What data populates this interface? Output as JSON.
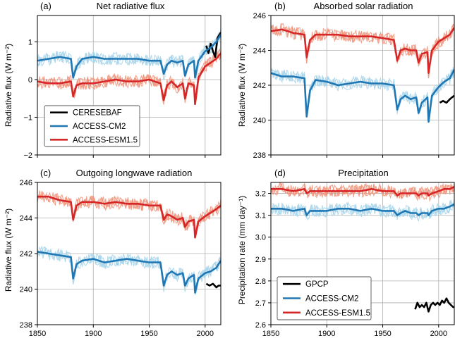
{
  "colors": {
    "obs": "#000000",
    "cm2": "#1f77b4",
    "cm2_light": "#a6d3ea",
    "esm": "#d62728",
    "esm_light": "#f0937a",
    "grid": "#b0b0b0"
  },
  "chart_data": [
    {
      "type": "line",
      "panel": "(a)",
      "title": "Net radiative flux",
      "ylabel": "Radiative flux (W m⁻²)",
      "xlim": [
        1850,
        2014
      ],
      "ylim": [
        -2,
        1.7
      ],
      "yticks": [
        -2,
        -1,
        0,
        1
      ],
      "ytick_labels": [
        "−2",
        "−1",
        "0",
        "1"
      ],
      "xticks": [
        1850,
        1900,
        1950,
        2000
      ],
      "xtick_labels": [],
      "grid": true,
      "legend": {
        "placement": "lower-left",
        "entries": [
          "CERESEBAF",
          "ACCESS-CM2",
          "ACCESS-ESM1.5"
        ]
      },
      "series": [
        {
          "name": "CERESEBAF",
          "color": "obs",
          "x": [
            2001,
            2003,
            2005,
            2007,
            2009,
            2011,
            2013,
            2014
          ],
          "y": [
            0.9,
            0.7,
            0.95,
            0.75,
            0.6,
            1.1,
            1.2,
            1.25
          ]
        },
        {
          "name": "ACCESS-CM2",
          "color": "cm2",
          "x": [
            1850,
            1860,
            1870,
            1880,
            1882,
            1885,
            1890,
            1900,
            1910,
            1920,
            1930,
            1940,
            1950,
            1960,
            1963,
            1966,
            1970,
            1975,
            1980,
            1982,
            1985,
            1990,
            1991,
            1994,
            2000,
            2005,
            2010,
            2014
          ],
          "y": [
            0.5,
            0.55,
            0.6,
            0.55,
            0.05,
            0.35,
            0.55,
            0.6,
            0.55,
            0.55,
            0.55,
            0.55,
            0.5,
            0.5,
            0.15,
            0.4,
            0.5,
            0.45,
            0.5,
            0.1,
            0.4,
            0.5,
            0.05,
            0.5,
            0.75,
            0.85,
            1.0,
            1.2
          ]
        },
        {
          "name": "ACCESS-ESM1.5",
          "color": "esm",
          "x": [
            1850,
            1860,
            1870,
            1880,
            1882,
            1885,
            1890,
            1900,
            1910,
            1920,
            1930,
            1940,
            1950,
            1960,
            1963,
            1966,
            1970,
            1975,
            1980,
            1982,
            1985,
            1990,
            1991,
            1994,
            2000,
            2005,
            2010,
            2014
          ],
          "y": [
            -0.05,
            -0.1,
            -0.1,
            -0.05,
            -0.45,
            -0.15,
            -0.1,
            -0.1,
            -0.05,
            0.0,
            -0.05,
            -0.05,
            0.0,
            -0.1,
            -0.55,
            -0.15,
            -0.05,
            -0.2,
            -0.1,
            -0.5,
            -0.1,
            -0.15,
            -0.65,
            0.05,
            0.35,
            0.45,
            0.55,
            0.7
          ]
        }
      ]
    },
    {
      "type": "line",
      "panel": "(b)",
      "title": "Absorbed solar radiation",
      "ylabel": "Radiative flux (W m⁻²)",
      "xlim": [
        1850,
        2014
      ],
      "ylim": [
        238,
        246
      ],
      "yticks": [
        238,
        240,
        242,
        244,
        246
      ],
      "ytick_labels": [
        "238",
        "240",
        "242",
        "244",
        "246"
      ],
      "xticks": [
        1850,
        1900,
        1950,
        2000
      ],
      "xtick_labels": [],
      "grid": true,
      "series": [
        {
          "name": "CERESEBAF",
          "color": "obs",
          "x": [
            2001,
            2004,
            2007,
            2010,
            2012,
            2014
          ],
          "y": [
            241.0,
            241.1,
            241.0,
            241.2,
            241.3,
            241.4
          ]
        },
        {
          "name": "ACCESS-CM2",
          "color": "cm2",
          "x": [
            1850,
            1860,
            1870,
            1880,
            1882,
            1885,
            1890,
            1900,
            1910,
            1920,
            1930,
            1940,
            1950,
            1960,
            1963,
            1966,
            1970,
            1975,
            1980,
            1982,
            1985,
            1990,
            1991,
            1994,
            2000,
            2005,
            2010,
            2014
          ],
          "y": [
            242.7,
            242.5,
            242.5,
            242.4,
            240.2,
            241.7,
            242.3,
            242.2,
            242.0,
            242.1,
            242.2,
            242.1,
            242.1,
            242.0,
            240.6,
            241.2,
            241.4,
            241.2,
            241.3,
            240.4,
            241.0,
            241.3,
            239.9,
            241.4,
            241.9,
            242.2,
            242.4,
            242.9
          ]
        },
        {
          "name": "ACCESS-ESM1.5",
          "color": "esm",
          "x": [
            1850,
            1860,
            1870,
            1880,
            1882,
            1885,
            1890,
            1900,
            1910,
            1920,
            1930,
            1940,
            1950,
            1960,
            1963,
            1966,
            1970,
            1975,
            1980,
            1982,
            1985,
            1990,
            1991,
            1994,
            2000,
            2005,
            2010,
            2014
          ],
          "y": [
            245.1,
            245.2,
            245.0,
            244.9,
            243.6,
            244.6,
            244.9,
            244.9,
            244.9,
            244.8,
            244.8,
            244.8,
            244.7,
            244.6,
            243.4,
            244.0,
            244.1,
            244.0,
            244.0,
            243.3,
            243.8,
            243.9,
            242.7,
            244.0,
            244.5,
            244.7,
            244.9,
            245.3
          ]
        }
      ]
    },
    {
      "type": "line",
      "panel": "(c)",
      "title": "Outgoing longwave radiation",
      "ylabel": "Radiative flux (W m⁻²)",
      "xlim": [
        1850,
        2014
      ],
      "ylim": [
        238,
        246
      ],
      "yticks": [
        238,
        240,
        242,
        244,
        246
      ],
      "ytick_labels": [
        "238",
        "240",
        "242",
        "244",
        "246"
      ],
      "xticks": [
        1850,
        1900,
        1950,
        2000
      ],
      "xtick_labels": [
        "1850",
        "1900",
        "1950",
        "2000"
      ],
      "grid": true,
      "series": [
        {
          "name": "CERESEBAF",
          "color": "obs",
          "x": [
            2001,
            2004,
            2007,
            2010,
            2012,
            2014
          ],
          "y": [
            240.3,
            240.2,
            240.3,
            240.1,
            240.2,
            240.2
          ]
        },
        {
          "name": "ACCESS-CM2",
          "color": "cm2",
          "x": [
            1850,
            1860,
            1870,
            1880,
            1882,
            1885,
            1890,
            1900,
            1910,
            1920,
            1930,
            1940,
            1950,
            1960,
            1963,
            1966,
            1970,
            1975,
            1980,
            1982,
            1985,
            1990,
            1991,
            1994,
            2000,
            2005,
            2010,
            2014
          ],
          "y": [
            242.1,
            242.0,
            241.9,
            241.8,
            240.6,
            241.4,
            241.6,
            241.7,
            241.5,
            241.6,
            241.7,
            241.6,
            241.5,
            241.5,
            240.2,
            240.8,
            241.0,
            240.8,
            240.9,
            240.2,
            240.6,
            240.8,
            239.8,
            240.6,
            240.9,
            241.0,
            241.2,
            241.6
          ]
        },
        {
          "name": "ACCESS-ESM1.5",
          "color": "esm",
          "x": [
            1850,
            1860,
            1870,
            1880,
            1882,
            1885,
            1890,
            1900,
            1910,
            1920,
            1930,
            1940,
            1950,
            1960,
            1963,
            1966,
            1970,
            1975,
            1980,
            1982,
            1985,
            1990,
            1991,
            1994,
            2000,
            2005,
            2010,
            2014
          ],
          "y": [
            245.2,
            245.2,
            245.0,
            244.9,
            243.9,
            244.7,
            244.9,
            244.9,
            244.8,
            244.9,
            244.8,
            244.8,
            244.7,
            244.7,
            243.9,
            244.2,
            244.1,
            243.9,
            244.0,
            243.5,
            243.8,
            243.9,
            242.9,
            243.8,
            244.1,
            244.3,
            244.5,
            244.7
          ]
        }
      ]
    },
    {
      "type": "line",
      "panel": "(d)",
      "title": "Precipitation",
      "ylabel": "Precipitation rate (mm day⁻¹)",
      "xlim": [
        1850,
        2014
      ],
      "ylim": [
        2.6,
        3.25
      ],
      "yticks": [
        2.6,
        2.7,
        2.8,
        2.9,
        3.0,
        3.1,
        3.2
      ],
      "ytick_labels": [
        "2.6",
        "2.7",
        "2.8",
        "2.9",
        "3.0",
        "3.1",
        "3.2"
      ],
      "xticks": [
        1850,
        1900,
        1950,
        2000
      ],
      "xtick_labels": [
        "1850",
        "1900",
        "1950",
        "2000"
      ],
      "grid": true,
      "legend": {
        "placement": "lower-left",
        "entries": [
          "GPCP",
          "ACCESS-CM2",
          "ACCESS-ESM1.5"
        ]
      },
      "series": [
        {
          "name": "GPCP",
          "color": "obs",
          "x": [
            1979,
            1981,
            1983,
            1985,
            1987,
            1989,
            1991,
            1993,
            1995,
            1997,
            1999,
            2001,
            2003,
            2005,
            2007,
            2009,
            2011,
            2013,
            2014
          ],
          "y": [
            2.67,
            2.7,
            2.68,
            2.69,
            2.68,
            2.7,
            2.66,
            2.69,
            2.7,
            2.69,
            2.7,
            2.69,
            2.71,
            2.7,
            2.72,
            2.7,
            2.69,
            2.68,
            2.68
          ]
        },
        {
          "name": "ACCESS-CM2",
          "color": "cm2",
          "x": [
            1850,
            1860,
            1870,
            1880,
            1882,
            1885,
            1890,
            1900,
            1910,
            1920,
            1930,
            1940,
            1950,
            1960,
            1963,
            1966,
            1970,
            1975,
            1980,
            1982,
            1985,
            1990,
            1991,
            1994,
            2000,
            2005,
            2010,
            2014
          ],
          "y": [
            3.13,
            3.13,
            3.12,
            3.13,
            3.1,
            3.12,
            3.12,
            3.12,
            3.13,
            3.13,
            3.12,
            3.13,
            3.12,
            3.12,
            3.1,
            3.11,
            3.12,
            3.11,
            3.11,
            3.1,
            3.11,
            3.11,
            3.1,
            3.12,
            3.13,
            3.13,
            3.14,
            3.15
          ]
        },
        {
          "name": "ACCESS-ESM1.5",
          "color": "esm",
          "x": [
            1850,
            1860,
            1870,
            1880,
            1882,
            1885,
            1890,
            1900,
            1910,
            1920,
            1930,
            1940,
            1950,
            1960,
            1963,
            1966,
            1970,
            1975,
            1980,
            1982,
            1985,
            1990,
            1991,
            1994,
            2000,
            2005,
            2010,
            2014
          ],
          "y": [
            3.22,
            3.22,
            3.21,
            3.22,
            3.2,
            3.21,
            3.21,
            3.21,
            3.21,
            3.21,
            3.21,
            3.22,
            3.21,
            3.21,
            3.19,
            3.2,
            3.2,
            3.2,
            3.2,
            3.19,
            3.2,
            3.2,
            3.19,
            3.2,
            3.21,
            3.22,
            3.22,
            3.23
          ]
        }
      ]
    }
  ]
}
